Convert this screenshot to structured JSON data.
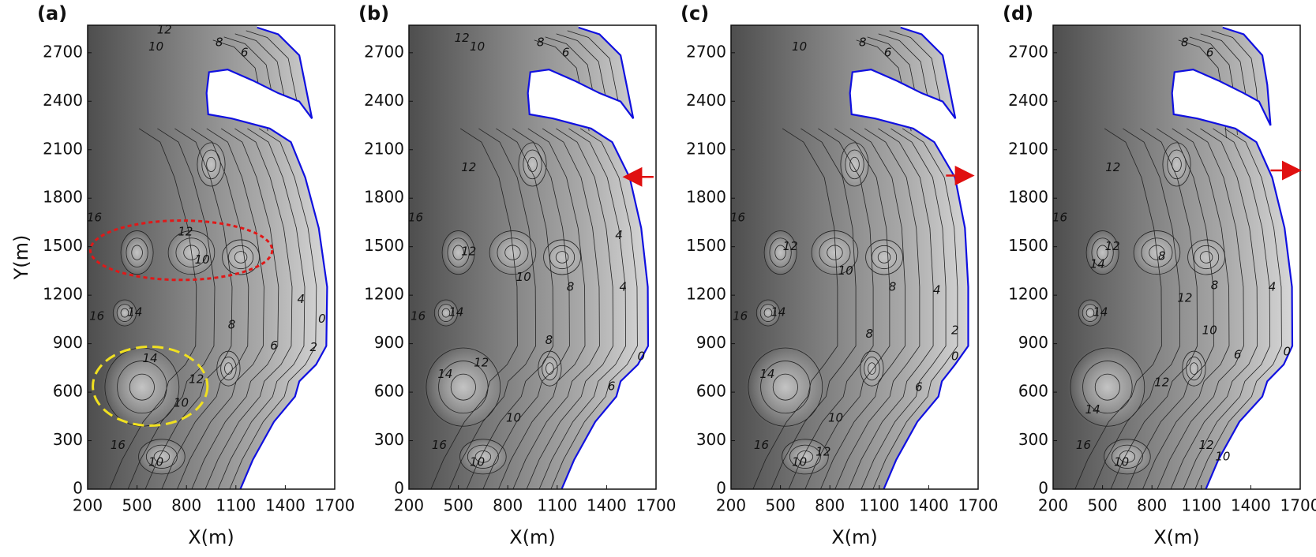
{
  "chart_data": [
    {
      "type": "contour",
      "panel_label": "(a)",
      "xlabel": "X(m)",
      "ylabel": "Y(m)",
      "xlim": [
        200,
        1700
      ],
      "ylim": [
        0,
        2870
      ],
      "xticks": [
        200,
        500,
        800,
        1100,
        1400,
        1700
      ],
      "yticks": [
        0,
        300,
        600,
        900,
        1200,
        1500,
        1800,
        2100,
        2400,
        2700
      ],
      "shoreline": {
        "color": "#1010e0",
        "x": [
          1229,
          1357,
          1485,
          1521,
          1562,
          1485,
          1357,
          1203,
          1050,
          937,
          922,
          932,
          1075,
          1306,
          1434,
          1521,
          1603,
          1654,
          1649,
          1587,
          1485,
          1459,
          1331,
          1203,
          1127
        ],
        "y": [
          2856,
          2814,
          2684,
          2502,
          2293,
          2398,
          2450,
          2528,
          2596,
          2580,
          2450,
          2319,
          2293,
          2231,
          2147,
          1928,
          1616,
          1251,
          886,
          771,
          667,
          573,
          417,
          182,
          0
        ]
      },
      "contour_labels": [
        {
          "text": "12",
          "x": 666,
          "y": 2840
        },
        {
          "text": "10",
          "x": 615,
          "y": 2736
        },
        {
          "text": "8",
          "x": 999,
          "y": 2762
        },
        {
          "text": "6",
          "x": 1152,
          "y": 2700
        },
        {
          "text": "16",
          "x": 241,
          "y": 1678
        },
        {
          "text": "14",
          "x": 487,
          "y": 1094
        },
        {
          "text": "16",
          "x": 256,
          "y": 1068
        },
        {
          "text": "12",
          "x": 794,
          "y": 1590
        },
        {
          "text": "10",
          "x": 896,
          "y": 1418
        },
        {
          "text": "8",
          "x": 1075,
          "y": 1016
        },
        {
          "text": "4",
          "x": 1495,
          "y": 1173
        },
        {
          "text": "2",
          "x": 1572,
          "y": 876
        },
        {
          "text": "0",
          "x": 1623,
          "y": 1053
        },
        {
          "text": "14",
          "x": 579,
          "y": 808
        },
        {
          "text": "12",
          "x": 860,
          "y": 678
        },
        {
          "text": "10",
          "x": 768,
          "y": 532
        },
        {
          "text": "16",
          "x": 384,
          "y": 271
        },
        {
          "text": "10",
          "x": 615,
          "y": 167
        },
        {
          "text": "6",
          "x": 1331,
          "y": 886
        }
      ]
    },
    {
      "type": "contour",
      "panel_label": "(b)",
      "xlabel": "X(m)",
      "xlim": [
        200,
        1700
      ],
      "ylim": [
        0,
        2870
      ],
      "xticks": [
        200,
        500,
        800,
        1100,
        1400,
        1700
      ],
      "yticks": [
        0,
        300,
        600,
        900,
        1200,
        1500,
        1800,
        2100,
        2400,
        2700
      ],
      "shoreline": {
        "color": "#1010e0",
        "x": [
          1229,
          1357,
          1485,
          1521,
          1562,
          1485,
          1357,
          1203,
          1050,
          937,
          922,
          932,
          1075,
          1306,
          1434,
          1540,
          1610,
          1650,
          1652,
          1590,
          1485,
          1459,
          1331,
          1203,
          1127
        ],
        "y": [
          2856,
          2814,
          2684,
          2502,
          2293,
          2398,
          2450,
          2528,
          2596,
          2580,
          2450,
          2319,
          2293,
          2231,
          2147,
          1928,
          1616,
          1251,
          886,
          771,
          667,
          573,
          417,
          182,
          0
        ]
      },
      "contour_labels": [
        {
          "text": "12",
          "x": 522,
          "y": 2790
        },
        {
          "text": "10",
          "x": 615,
          "y": 2736
        },
        {
          "text": "8",
          "x": 999,
          "y": 2762
        },
        {
          "text": "6",
          "x": 1152,
          "y": 2700
        },
        {
          "text": "12",
          "x": 563,
          "y": 1990
        },
        {
          "text": "16",
          "x": 241,
          "y": 1678
        },
        {
          "text": "12",
          "x": 563,
          "y": 1470
        },
        {
          "text": "10",
          "x": 896,
          "y": 1310
        },
        {
          "text": "8",
          "x": 1180,
          "y": 1250
        },
        {
          "text": "4",
          "x": 1475,
          "y": 1570
        },
        {
          "text": "4",
          "x": 1500,
          "y": 1250
        },
        {
          "text": "14",
          "x": 487,
          "y": 1094
        },
        {
          "text": "16",
          "x": 256,
          "y": 1068
        },
        {
          "text": "8",
          "x": 1050,
          "y": 920
        },
        {
          "text": "0",
          "x": 1610,
          "y": 820
        },
        {
          "text": "6",
          "x": 1430,
          "y": 635
        },
        {
          "text": "14",
          "x": 420,
          "y": 710
        },
        {
          "text": "12",
          "x": 640,
          "y": 780
        },
        {
          "text": "10",
          "x": 835,
          "y": 440
        },
        {
          "text": "10",
          "x": 615,
          "y": 167
        },
        {
          "text": "16",
          "x": 384,
          "y": 271
        }
      ]
    },
    {
      "type": "contour",
      "panel_label": "(c)",
      "xlabel": "X(m)",
      "xlim": [
        200,
        1700
      ],
      "ylim": [
        0,
        2870
      ],
      "xticks": [
        200,
        500,
        800,
        1100,
        1400,
        1700
      ],
      "yticks": [
        0,
        300,
        600,
        900,
        1200,
        1500,
        1800,
        2100,
        2400,
        2700
      ],
      "shoreline": {
        "color": "#1010e0",
        "x": [
          1229,
          1357,
          1485,
          1521,
          1562,
          1485,
          1357,
          1203,
          1050,
          937,
          922,
          932,
          1075,
          1306,
          1434,
          1560,
          1620,
          1640,
          1640,
          1560,
          1480,
          1459,
          1331,
          1203,
          1127
        ],
        "y": [
          2856,
          2814,
          2684,
          2502,
          2293,
          2398,
          2450,
          2528,
          2596,
          2580,
          2450,
          2319,
          2293,
          2231,
          2147,
          1928,
          1616,
          1251,
          886,
          771,
          667,
          573,
          417,
          182,
          0
        ]
      },
      "contour_labels": [
        {
          "text": "10",
          "x": 615,
          "y": 2736
        },
        {
          "text": "8",
          "x": 999,
          "y": 2762
        },
        {
          "text": "6",
          "x": 1152,
          "y": 2700
        },
        {
          "text": "16",
          "x": 241,
          "y": 1678
        },
        {
          "text": "12",
          "x": 560,
          "y": 1500
        },
        {
          "text": "10",
          "x": 896,
          "y": 1350
        },
        {
          "text": "8",
          "x": 1180,
          "y": 1250
        },
        {
          "text": "4",
          "x": 1450,
          "y": 1230
        },
        {
          "text": "2",
          "x": 1560,
          "y": 980
        },
        {
          "text": "0",
          "x": 1560,
          "y": 820
        },
        {
          "text": "14",
          "x": 487,
          "y": 1094
        },
        {
          "text": "16",
          "x": 256,
          "y": 1068
        },
        {
          "text": "8",
          "x": 1040,
          "y": 960
        },
        {
          "text": "6",
          "x": 1340,
          "y": 630
        },
        {
          "text": "14",
          "x": 420,
          "y": 710
        },
        {
          "text": "10",
          "x": 835,
          "y": 440
        },
        {
          "text": "12",
          "x": 760,
          "y": 230
        },
        {
          "text": "10",
          "x": 615,
          "y": 167
        },
        {
          "text": "16",
          "x": 384,
          "y": 271
        }
      ]
    },
    {
      "type": "contour",
      "panel_label": "(d)",
      "xlabel": "X(m)",
      "xlim": [
        200,
        1700
      ],
      "ylim": [
        0,
        2870
      ],
      "xticks": [
        200,
        500,
        800,
        1100,
        1400,
        1700
      ],
      "yticks": [
        0,
        300,
        600,
        900,
        1200,
        1500,
        1800,
        2100,
        2400,
        2700
      ],
      "shoreline": {
        "color": "#1010e0",
        "x": [
          1229,
          1357,
          1470,
          1500,
          1520,
          1450,
          1357,
          1203,
          1050,
          937,
          922,
          932,
          1075,
          1306,
          1434,
          1530,
          1605,
          1650,
          1652,
          1600,
          1500,
          1470,
          1331,
          1203,
          1127
        ],
        "y": [
          2856,
          2814,
          2684,
          2502,
          2250,
          2398,
          2450,
          2528,
          2596,
          2580,
          2450,
          2319,
          2293,
          2231,
          2147,
          1928,
          1616,
          1251,
          886,
          771,
          667,
          573,
          417,
          182,
          0
        ]
      },
      "contour_labels": [
        {
          "text": "8",
          "x": 999,
          "y": 2762
        },
        {
          "text": "6",
          "x": 1152,
          "y": 2700
        },
        {
          "text": "12",
          "x": 563,
          "y": 1990
        },
        {
          "text": "16",
          "x": 241,
          "y": 1678
        },
        {
          "text": "12",
          "x": 560,
          "y": 1500
        },
        {
          "text": "8",
          "x": 860,
          "y": 1440
        },
        {
          "text": "14",
          "x": 470,
          "y": 1390
        },
        {
          "text": "12",
          "x": 1000,
          "y": 1180
        },
        {
          "text": "8",
          "x": 1180,
          "y": 1260
        },
        {
          "text": "4",
          "x": 1530,
          "y": 1250
        },
        {
          "text": "0",
          "x": 1620,
          "y": 850
        },
        {
          "text": "14",
          "x": 487,
          "y": 1094
        },
        {
          "text": "10",
          "x": 1150,
          "y": 980
        },
        {
          "text": "6",
          "x": 1320,
          "y": 830
        },
        {
          "text": "12",
          "x": 860,
          "y": 660
        },
        {
          "text": "14",
          "x": 440,
          "y": 490
        },
        {
          "text": "12",
          "x": 1130,
          "y": 270
        },
        {
          "text": "10",
          "x": 1230,
          "y": 200
        },
        {
          "text": "16",
          "x": 384,
          "y": 271
        },
        {
          "text": "10",
          "x": 615,
          "y": 167
        }
      ]
    }
  ]
}
